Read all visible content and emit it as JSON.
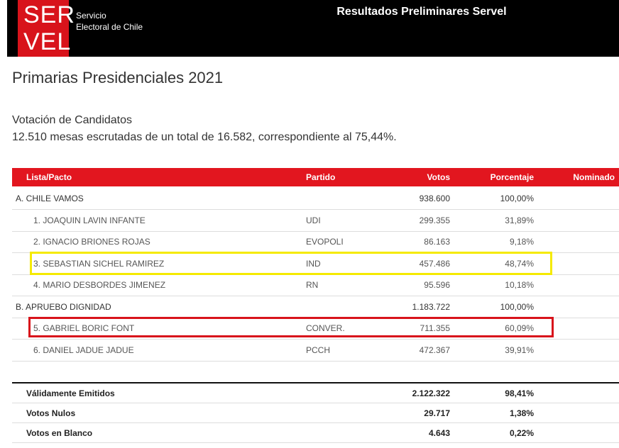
{
  "header": {
    "logo": [
      "SER",
      "VEL"
    ],
    "org": [
      "Servicio",
      "Electoral de Chile"
    ],
    "title": "Resultados Preliminares Servel"
  },
  "page": {
    "title": "Primarias Presidenciales 2021",
    "subtitle": "Votación de Candidatos",
    "summary": "12.510 mesas escrutadas de un total de 16.582, correspondiente al 75,44%."
  },
  "table": {
    "columns": [
      "Lista/Pacto",
      "Partido",
      "Votos",
      "Porcentaje",
      "Nominado"
    ],
    "rows": [
      {
        "name": "A. CHILE VAMOS",
        "votes": "938.600",
        "percent": "100,00%"
      },
      {
        "name": "1. JOAQUIN LAVIN INFANTE",
        "party": "UDI",
        "votes": "299.355",
        "percent": "31,89%"
      },
      {
        "name": "2. IGNACIO BRIONES ROJAS",
        "party": "EVOPOLI",
        "votes": "86.163",
        "percent": "9,18%"
      },
      {
        "name": "3. SEBASTIAN SICHEL RAMIREZ",
        "party": "IND",
        "votes": "457.486",
        "percent": "48,74%"
      },
      {
        "name": "4. MARIO DESBORDES JIMENEZ",
        "party": "RN",
        "votes": "95.596",
        "percent": "10,18%"
      },
      {
        "name": "B. APRUEBO DIGNIDAD",
        "votes": "1.183.722",
        "percent": "100,00%"
      },
      {
        "name": "5. GABRIEL BORIC FONT",
        "party": "CONVER.",
        "votes": "711.355",
        "percent": "60,09%"
      },
      {
        "name": "6. DANIEL JADUE JADUE",
        "party": "PCCH",
        "votes": "472.367",
        "percent": "39,91%"
      }
    ]
  },
  "totals": {
    "rows": [
      {
        "name": "Válidamente Emitidos",
        "votes": "2.122.322",
        "percent": "98,41%"
      },
      {
        "name": "Votos Nulos",
        "votes": "29.717",
        "percent": "1,38%"
      },
      {
        "name": "Votos en Blanco",
        "votes": "4.643",
        "percent": "0,22%"
      }
    ]
  }
}
